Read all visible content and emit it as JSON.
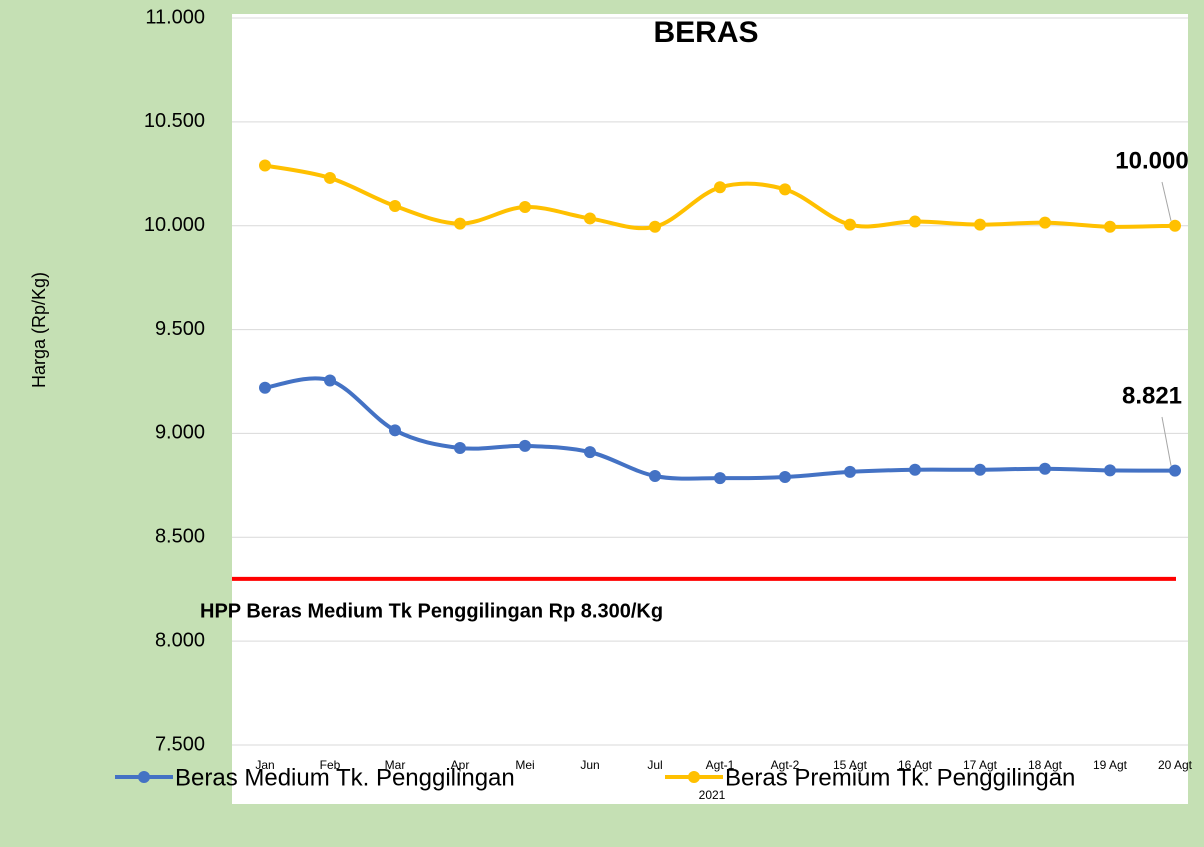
{
  "chart_data": {
    "type": "line",
    "title": "BERAS",
    "y_label": "Harga (Rp/Kg)",
    "x_label": "2021",
    "categories": [
      "Jan",
      "Feb",
      "Mar",
      "Apr",
      "Mei",
      "Jun",
      "Jul",
      "Agt-1",
      "Agt-2",
      "15 Agt",
      "16 Agt",
      "17 Agt",
      "18 Agt",
      "19 Agt",
      "20 Agt"
    ],
    "series": [
      {
        "name": "Beras Medium Tk. Penggilingan",
        "color": "#4472c4",
        "values": [
          9220,
          9255,
          9015,
          8930,
          8940,
          8910,
          8795,
          8785,
          8790,
          8815,
          8825,
          8825,
          8830,
          8822,
          8821
        ],
        "value_labels": [
          null,
          null,
          null,
          null,
          null,
          null,
          null,
          null,
          null,
          null,
          null,
          null,
          null,
          null,
          "8.821"
        ]
      },
      {
        "name": "Beras Premium Tk. Penggilingan",
        "color": "#ffc000",
        "values": [
          10290,
          10230,
          10095,
          10010,
          10090,
          10035,
          9995,
          10185,
          10175,
          10005,
          10020,
          10005,
          10015,
          9995,
          10000
        ],
        "value_labels": [
          null,
          null,
          null,
          null,
          null,
          null,
          null,
          null,
          null,
          null,
          null,
          null,
          null,
          null,
          "10.000"
        ]
      }
    ],
    "reference_line": {
      "value": 8300,
      "color": "#ff0000",
      "label": "HPP Beras Medium Tk Penggilingan Rp 8.300/Kg"
    },
    "ylim": [
      7500,
      11000
    ],
    "yticks": [
      {
        "value": 7500,
        "label": "7.500"
      },
      {
        "value": 8000,
        "label": "8.000"
      },
      {
        "value": 8500,
        "label": "8.500"
      },
      {
        "value": 9000,
        "label": "9.000"
      },
      {
        "value": 9500,
        "label": "9.500"
      },
      {
        "value": 10000,
        "label": "10.000"
      },
      {
        "value": 10500,
        "label": "10.500"
      },
      {
        "value": 11000,
        "label": "11.000"
      }
    ],
    "grid": true,
    "smooth": true,
    "legend": "bottom"
  }
}
